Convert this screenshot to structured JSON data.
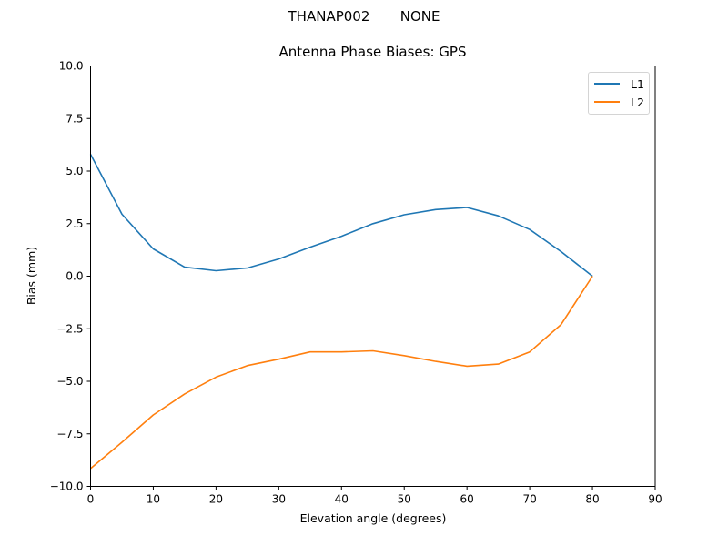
{
  "header": {
    "suptitle": "THANAP002       NONE",
    "title": "Antenna Phase Biases: GPS"
  },
  "axes": {
    "xlabel": "Elevation angle (degrees)",
    "ylabel": "Bias (mm)",
    "xticks": [
      "0",
      "10",
      "20",
      "30",
      "40",
      "50",
      "60",
      "70",
      "80",
      "90"
    ],
    "yticks": [
      "10.0",
      "7.5",
      "5.0",
      "2.5",
      "0.0",
      "−2.5",
      "−5.0",
      "−7.5",
      "−10.0"
    ]
  },
  "legend": {
    "items": [
      {
        "label": "L1",
        "color": "#1f77b4"
      },
      {
        "label": "L2",
        "color": "#ff7f0e"
      }
    ]
  },
  "chart_data": {
    "type": "line",
    "title": "Antenna Phase Biases: GPS",
    "suptitle": "THANAP002       NONE",
    "xlabel": "Elevation angle (degrees)",
    "ylabel": "Bias (mm)",
    "xlim": [
      0,
      90
    ],
    "ylim": [
      -10,
      10
    ],
    "grid": false,
    "legend_position": "upper right",
    "x": [
      0,
      5,
      10,
      15,
      20,
      25,
      30,
      35,
      40,
      45,
      50,
      55,
      60,
      65,
      70,
      75,
      80
    ],
    "series": [
      {
        "name": "L1",
        "color": "#1f77b4",
        "values": [
          5.8,
          2.95,
          1.3,
          0.43,
          0.26,
          0.39,
          0.82,
          1.38,
          1.9,
          2.5,
          2.92,
          3.17,
          3.27,
          2.87,
          2.22,
          1.17,
          0.0
        ]
      },
      {
        "name": "L2",
        "color": "#ff7f0e",
        "values": [
          -9.15,
          -7.9,
          -6.6,
          -5.6,
          -4.8,
          -4.25,
          -3.95,
          -3.6,
          -3.6,
          -3.55,
          -3.78,
          -4.05,
          -4.28,
          -4.18,
          -3.6,
          -2.3,
          0.0
        ]
      }
    ]
  }
}
